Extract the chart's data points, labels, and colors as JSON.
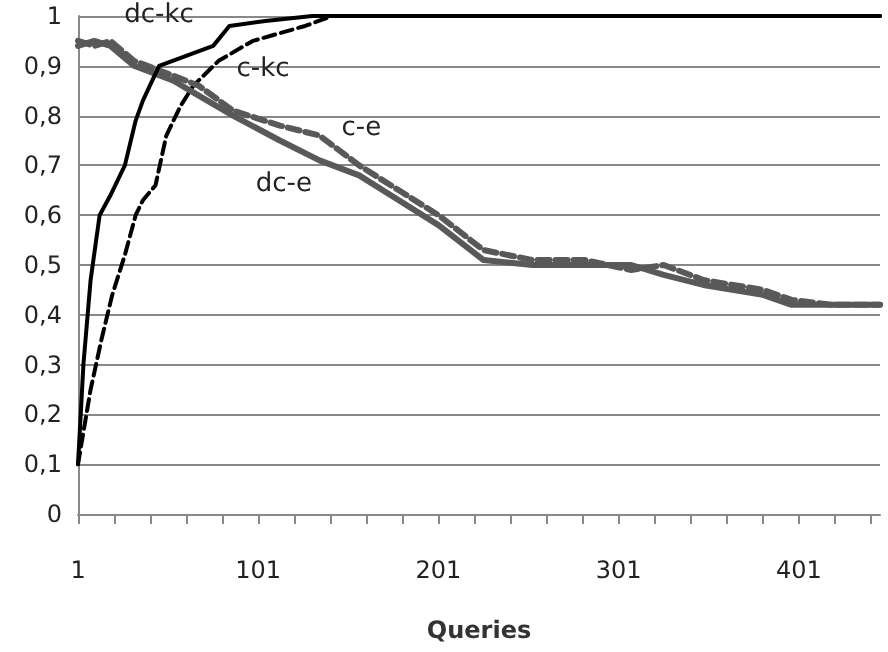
{
  "chart_data": {
    "type": "line",
    "xlabel": "Queries",
    "xlim": [
      1,
      446
    ],
    "xticks": [
      {
        "value": 1,
        "label": "1"
      },
      {
        "value": 21,
        "label": null
      },
      {
        "value": 41,
        "label": null
      },
      {
        "value": 61,
        "label": null
      },
      {
        "value": 81,
        "label": null
      },
      {
        "value": 101,
        "label": "101"
      },
      {
        "value": 121,
        "label": null
      },
      {
        "value": 141,
        "label": null
      },
      {
        "value": 161,
        "label": null
      },
      {
        "value": 181,
        "label": null
      },
      {
        "value": 201,
        "label": "201"
      },
      {
        "value": 221,
        "label": null
      },
      {
        "value": 241,
        "label": null
      },
      {
        "value": 261,
        "label": null
      },
      {
        "value": 281,
        "label": null
      },
      {
        "value": 301,
        "label": "301"
      },
      {
        "value": 321,
        "label": null
      },
      {
        "value": 341,
        "label": null
      },
      {
        "value": 361,
        "label": null
      },
      {
        "value": 381,
        "label": null
      },
      {
        "value": 401,
        "label": "401"
      },
      {
        "value": 421,
        "label": null
      },
      {
        "value": 441,
        "label": null
      }
    ],
    "ylim": [
      0,
      1
    ],
    "yticks": [
      {
        "value": 0,
        "label": "0"
      },
      {
        "value": 0.1,
        "label": "0,1"
      },
      {
        "value": 0.2,
        "label": "0,2"
      },
      {
        "value": 0.3,
        "label": "0,3"
      },
      {
        "value": 0.4,
        "label": "0,4"
      },
      {
        "value": 0.5,
        "label": "0,5"
      },
      {
        "value": 0.6,
        "label": "0,6"
      },
      {
        "value": 0.7,
        "label": "0,7"
      },
      {
        "value": 0.8,
        "label": "0,8"
      },
      {
        "value": 0.9,
        "label": "0,9"
      },
      {
        "value": 1,
        "label": "1"
      }
    ],
    "grid": "y",
    "legend": false,
    "marker": "none",
    "series": [
      {
        "name": "dc-kc",
        "color": "#000000",
        "line_style": "solid",
        "x": [
          1,
          4,
          8,
          13,
          19,
          27,
          33,
          37,
          46,
          61,
          76,
          85,
          105,
          131,
          446
        ],
        "values": [
          0.1,
          0.3,
          0.47,
          0.6,
          0.64,
          0.7,
          0.79,
          0.83,
          0.9,
          0.92,
          0.94,
          0.98,
          0.99,
          1,
          1
        ]
      },
      {
        "name": "c-kc",
        "color": "#000000",
        "line_style": "dashed",
        "x": [
          1,
          8,
          14,
          20,
          27,
          33,
          37,
          44,
          50,
          58,
          65,
          79,
          98,
          127,
          142,
          446
        ],
        "values": [
          0.1,
          0.25,
          0.35,
          0.44,
          0.52,
          0.6,
          0.63,
          0.66,
          0.76,
          0.82,
          0.86,
          0.91,
          0.95,
          0.98,
          1,
          1
        ]
      },
      {
        "name": "c-e",
        "color": "#595959",
        "line_style": "dashed",
        "x": [
          1,
          10,
          19,
          32,
          54,
          68,
          87,
          113,
          135,
          157,
          179,
          201,
          226,
          253,
          282,
          308,
          326,
          348,
          381,
          397,
          419,
          446
        ],
        "values": [
          0.95,
          0.94,
          0.95,
          0.91,
          0.88,
          0.86,
          0.81,
          0.78,
          0.76,
          0.7,
          0.65,
          0.6,
          0.53,
          0.51,
          0.51,
          0.49,
          0.5,
          0.47,
          0.45,
          0.43,
          0.42,
          0.42
        ]
      },
      {
        "name": "dc-e",
        "color": "#595959",
        "line_style": "solid",
        "x": [
          1,
          10,
          19,
          32,
          54,
          68,
          87,
          113,
          135,
          157,
          179,
          201,
          226,
          253,
          282,
          308,
          326,
          348,
          381,
          397,
          419,
          446
        ],
        "values": [
          0.94,
          0.95,
          0.94,
          0.9,
          0.87,
          0.84,
          0.8,
          0.75,
          0.71,
          0.68,
          0.63,
          0.58,
          0.51,
          0.5,
          0.5,
          0.5,
          0.48,
          0.46,
          0.44,
          0.42,
          0.42,
          0.42
        ]
      }
    ]
  }
}
